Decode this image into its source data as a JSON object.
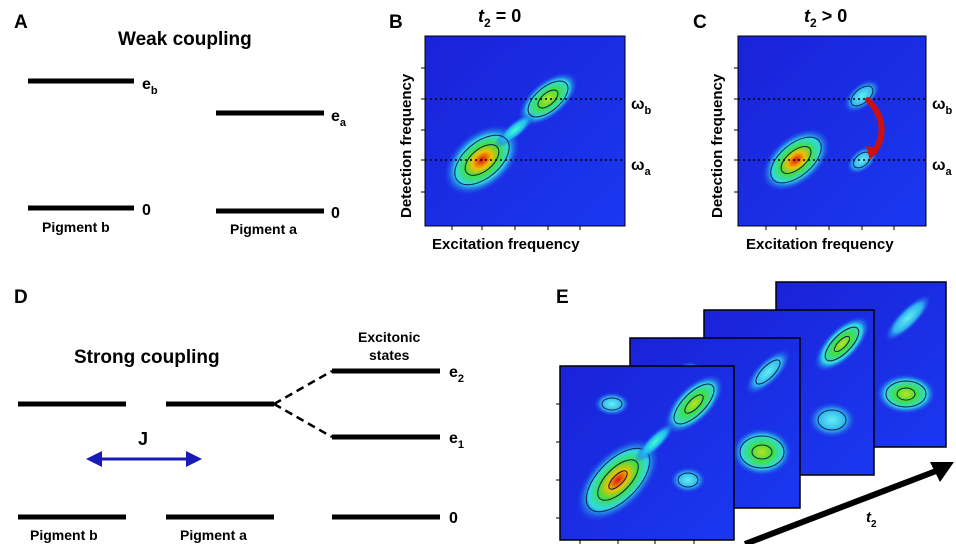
{
  "panels": {
    "a": {
      "letter": "A",
      "title": "Weak coupling",
      "level_eb": "e",
      "level_eb_sub": "b",
      "level_ea": "e",
      "level_ea_sub": "a",
      "zero_left": "0",
      "zero_right": "0",
      "pigment_b": "Pigment b",
      "pigment_a": "Pigment a"
    },
    "b": {
      "letter": "B",
      "title_var": "t",
      "title_sub": "2",
      "title_rest": " = 0",
      "ylabel": "Detection frequency",
      "xlabel": "Excitation frequency",
      "omega_b": "ω",
      "omega_b_sub": "b",
      "omega_a": "ω",
      "omega_a_sub": "a"
    },
    "c": {
      "letter": "C",
      "title_var": "t",
      "title_sub": "2",
      "title_rest": " > 0",
      "ylabel": "Detection frequency",
      "xlabel": "Excitation frequency",
      "omega_b": "ω",
      "omega_b_sub": "b",
      "omega_a": "ω",
      "omega_a_sub": "a"
    },
    "d": {
      "letter": "D",
      "title": "Strong coupling",
      "excitonic_line1": "Excitonic",
      "excitonic_line2": "states",
      "e2": "e",
      "e2_sub": "2",
      "e1": "e",
      "e1_sub": "1",
      "zero": "0",
      "coupling": "J",
      "pigment_b": "Pigment b",
      "pigment_a": "Pigment a"
    },
    "e": {
      "letter": "E",
      "axis_var": "t",
      "axis_sub": "2"
    }
  },
  "colors": {
    "spectrum_bg": "#1a2fe0",
    "arrow_red": "#cc1010",
    "coupling_arrow": "#1a1ab8"
  }
}
